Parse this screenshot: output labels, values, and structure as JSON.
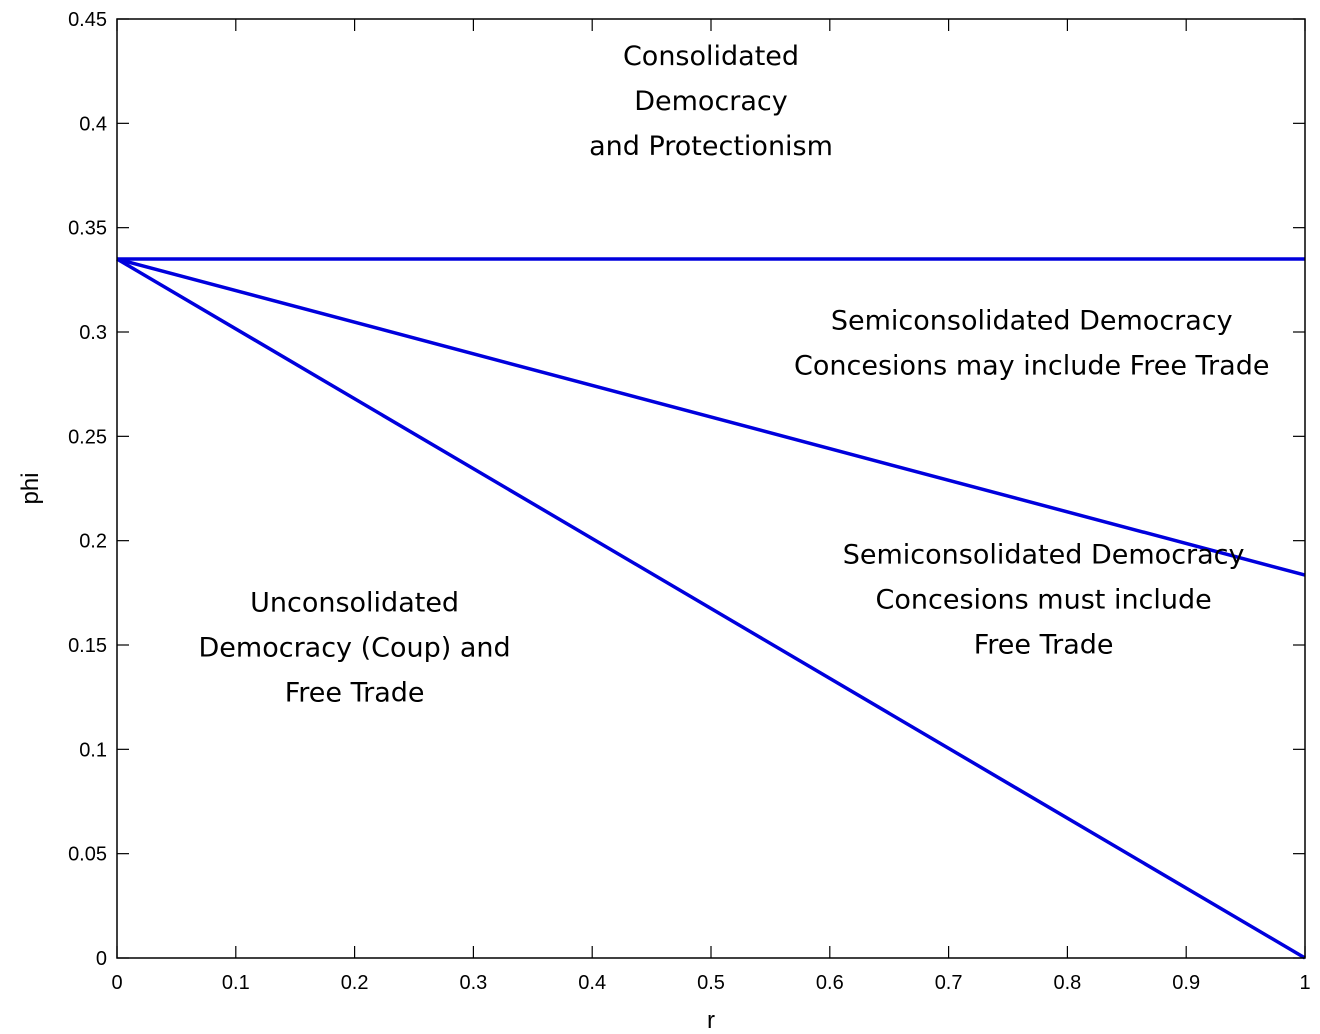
{
  "chart_data": {
    "type": "line",
    "title": "",
    "xlabel": "r",
    "ylabel": "phi",
    "xlim": [
      0,
      1
    ],
    "ylim": [
      0,
      0.45
    ],
    "xticks": [
      0,
      0.1,
      0.2,
      0.3,
      0.4,
      0.5,
      0.6,
      0.7,
      0.8,
      0.9,
      1
    ],
    "xtick_labels": [
      "0",
      "0.1",
      "0.2",
      "0.3",
      "0.4",
      "0.5",
      "0.6",
      "0.7",
      "0.8",
      "0.9",
      "1"
    ],
    "yticks": [
      0,
      0.05,
      0.1,
      0.15,
      0.2,
      0.25,
      0.3,
      0.35,
      0.4,
      0.45
    ],
    "ytick_labels": [
      "0",
      "0.05",
      "0.1",
      "0.15",
      "0.2",
      "0.25",
      "0.3",
      "0.35",
      "0.4",
      "0.45"
    ],
    "grid": false,
    "line_color": "#0000dd",
    "series": [
      {
        "x": [
          0,
          1
        ],
        "y": [
          0.335,
          0.335
        ]
      },
      {
        "x": [
          0,
          1
        ],
        "y": [
          0.335,
          0.1835
        ]
      },
      {
        "x": [
          0,
          1
        ],
        "y": [
          0.335,
          0.0
        ]
      }
    ],
    "annotations": [
      {
        "lines": [
          "Consolidated",
          "Democracy",
          "and Protectionism"
        ],
        "x": 0.5,
        "y": 0.41
      },
      {
        "lines": [
          "Semiconsolidated Democracy",
          "Concesions may include Free Trade"
        ],
        "x": 0.77,
        "y": 0.294
      },
      {
        "lines": [
          "Semiconsolidated Democracy",
          "Concesions must include",
          "Free Trade"
        ],
        "x": 0.78,
        "y": 0.171
      },
      {
        "lines": [
          "Unconsolidated",
          "Democracy (Coup) and",
          "Free Trade"
        ],
        "x": 0.2,
        "y": 0.148
      }
    ]
  }
}
